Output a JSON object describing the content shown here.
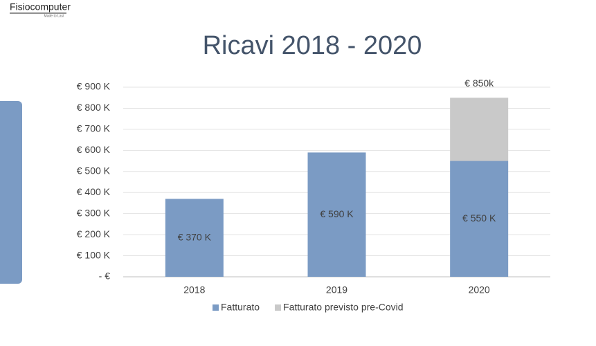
{
  "logo": {
    "name": "Fisiocomputer",
    "tagline": "Made to Last"
  },
  "chart_data": {
    "type": "bar",
    "stacked": true,
    "title": "Ricavi 2018 - 2020",
    "categories": [
      "2018",
      "2019",
      "2020"
    ],
    "series": [
      {
        "name": "Fatturato",
        "color": "#7b9bc4",
        "values": [
          370,
          590,
          550
        ],
        "value_labels": [
          "€ 370 K",
          "€ 590 K",
          "€ 550 K"
        ]
      },
      {
        "name": "Fatturato previsto pre-Covid",
        "color": "#c9c9c9",
        "values": [
          null,
          null,
          300
        ]
      }
    ],
    "annotations": [
      {
        "text": "€ 850k",
        "x": "2020",
        "y": 850
      }
    ],
    "ylim": [
      0,
      900
    ],
    "yticks": [
      {
        "value": 0,
        "label": "-  €"
      },
      {
        "value": 100,
        "label": "€ 100 K"
      },
      {
        "value": 200,
        "label": "€ 200 K"
      },
      {
        "value": 300,
        "label": "€ 300 K"
      },
      {
        "value": 400,
        "label": "€ 400 K"
      },
      {
        "value": 500,
        "label": "€ 500 K"
      },
      {
        "value": 600,
        "label": "€ 600 K"
      },
      {
        "value": 700,
        "label": "€ 700 K"
      },
      {
        "value": 800,
        "label": "€ 800 K"
      },
      {
        "value": 900,
        "label": "€ 900 K"
      }
    ],
    "grid": true,
    "legend": "bottom"
  }
}
